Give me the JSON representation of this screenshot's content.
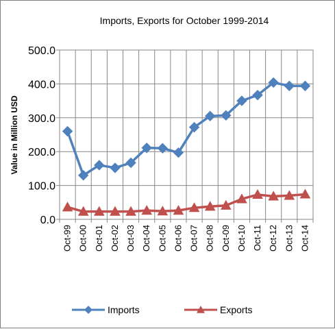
{
  "chart_data": {
    "type": "line",
    "title": "Imports, Exports for October 1999-2014",
    "xlabel": "",
    "ylabel": "Value in  Million  USD",
    "categories": [
      "Oct-99",
      "Oct-00",
      "Oct-01",
      "Oct-02",
      "Oct-03",
      "Oct-04",
      "Oct-05",
      "Oct-06",
      "Oct-07",
      "Oct-08",
      "Oct-09",
      "Oct-10",
      "Oct-11",
      "Oct-12",
      "Oct-13",
      "Oct-14"
    ],
    "ylim": [
      0,
      500
    ],
    "yticks": [
      "0.0",
      "100.0",
      "200.0",
      "300.0",
      "400.0",
      "500.0"
    ],
    "grid": true,
    "legend_position": "bottom",
    "series": [
      {
        "name": "Imports",
        "color": "#4F81BD",
        "marker": "diamond",
        "values": [
          260,
          130,
          160,
          152,
          167,
          211,
          210,
          197,
          272,
          305,
          307,
          350,
          367,
          404,
          394,
          394
        ]
      },
      {
        "name": "Exports",
        "color": "#C0504D",
        "marker": "triangle",
        "values": [
          36,
          23,
          23,
          23,
          23,
          26,
          24,
          26,
          34,
          38,
          41,
          60,
          73,
          68,
          70,
          74
        ]
      }
    ]
  }
}
